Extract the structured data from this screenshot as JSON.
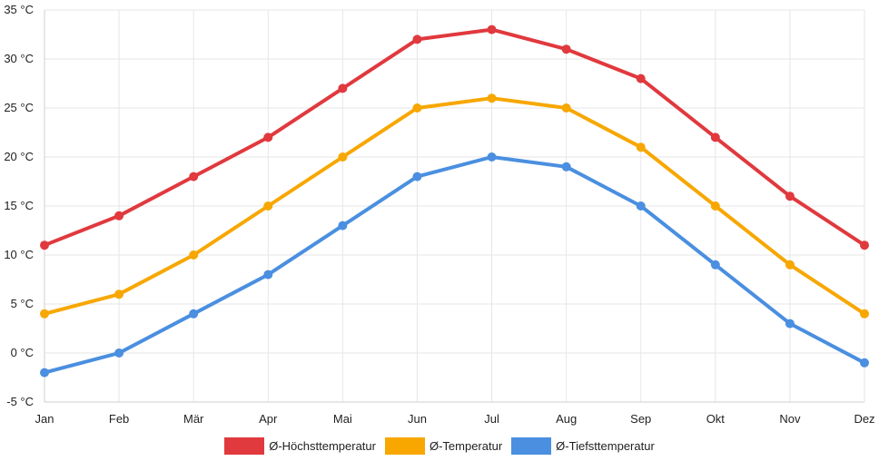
{
  "chart_data": {
    "type": "line",
    "categories": [
      "Jan",
      "Feb",
      "Mär",
      "Apr",
      "Mai",
      "Jun",
      "Jul",
      "Aug",
      "Sep",
      "Okt",
      "Nov",
      "Dez"
    ],
    "series": [
      {
        "name": "Ø-Höchsttemperatur",
        "color": "#e0393e",
        "values": [
          11,
          14,
          18,
          22,
          27,
          32,
          33,
          31,
          28,
          22,
          16,
          11
        ]
      },
      {
        "name": "Ø-Temperatur",
        "color": "#f7a700",
        "values": [
          4,
          6,
          10,
          15,
          20,
          25,
          26,
          25,
          21,
          15,
          9,
          4
        ]
      },
      {
        "name": "Ø-Tiefsttemperatur",
        "color": "#4a8fe0",
        "values": [
          -2,
          0,
          4,
          8,
          13,
          18,
          20,
          19,
          15,
          9,
          3,
          -1
        ]
      }
    ],
    "ylim": [
      -5,
      35
    ],
    "yticks": [
      "-5 °C",
      "0 °C",
      "5 °C",
      "10 °C",
      "15 °C",
      "20 °C",
      "25 °C",
      "30 °C",
      "35 °C"
    ],
    "ytick_values": [
      -5,
      0,
      5,
      10,
      15,
      20,
      25,
      30,
      35
    ],
    "grid": true,
    "legend_position": "bottom-center"
  }
}
